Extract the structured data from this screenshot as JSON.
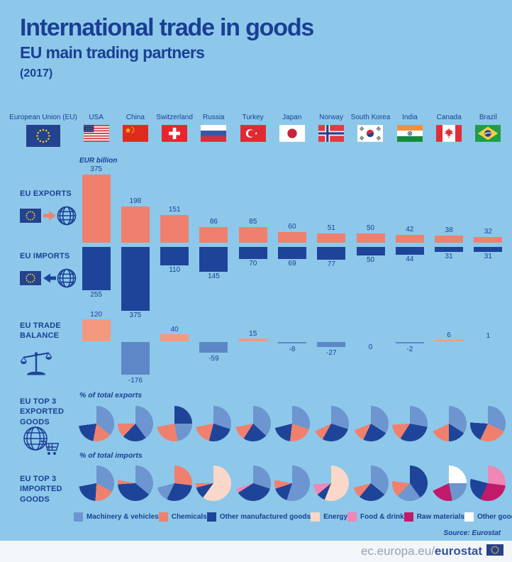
{
  "title": "International trade in goods",
  "subtitle": "EU main trading partners",
  "year": "(2017)",
  "unit_label": "EUR billion",
  "eu": {
    "label": "European Union (EU)"
  },
  "partners": [
    {
      "name": "USA",
      "flag": "usa"
    },
    {
      "name": "China",
      "flag": "china"
    },
    {
      "name": "Switzerland",
      "flag": "switzerland"
    },
    {
      "name": "Russia",
      "flag": "russia"
    },
    {
      "name": "Turkey",
      "flag": "turkey"
    },
    {
      "name": "Japan",
      "flag": "japan"
    },
    {
      "name": "Norway",
      "flag": "norway"
    },
    {
      "name": "South Korea",
      "flag": "south_korea"
    },
    {
      "name": "India",
      "flag": "india"
    },
    {
      "name": "Canada",
      "flag": "canada"
    },
    {
      "name": "Brazil",
      "flag": "brazil"
    }
  ],
  "row_labels": {
    "exports": "EU EXPORTS",
    "imports": "EU IMPORTS",
    "balance": "EU TRADE BALANCE",
    "top_exports": "EU TOP 3 EXPORTED GOODS",
    "top_imports": "EU TOP 3 IMPORTED GOODS"
  },
  "captions": {
    "exports_pies": "% of total exports",
    "imports_pies": "% of total imports"
  },
  "legend": [
    {
      "label": "Machinery & vehicles",
      "key": "machinery"
    },
    {
      "label": "Chemicals",
      "key": "chemicals"
    },
    {
      "label": "Other manufactured goods",
      "key": "other_manufactured"
    },
    {
      "label": "Energy",
      "key": "energy"
    },
    {
      "label": "Food & drink",
      "key": "food_drink"
    },
    {
      "label": "Raw materials",
      "key": "raw_materials"
    },
    {
      "label": "Other goods",
      "key": "other_goods"
    }
  ],
  "source": "Source: Eurostat",
  "footer": {
    "url_prefix": "ec.europa.eu/",
    "url_bold": "eurostat"
  },
  "colors": {
    "background": "#8dc8ea",
    "title_blue": "#1a3f94",
    "export_bar": "#f0806e",
    "import_bar": "#1e4499",
    "balance_positive": "#f4997f",
    "balance_negative": "#5d87c7",
    "machinery": "#6d95cf",
    "chemicals": "#f0806e",
    "other_manufactured": "#1e4499",
    "energy": "#f9d7c9",
    "food_drink": "#ef87b7",
    "raw_materials": "#c11a6a",
    "other_goods": "#ffffff"
  },
  "chart_data": [
    {
      "type": "bar",
      "title": "EU exports",
      "ylabel": "EUR billion",
      "categories": [
        "USA",
        "China",
        "Switzerland",
        "Russia",
        "Turkey",
        "Japan",
        "Norway",
        "South Korea",
        "India",
        "Canada",
        "Brazil"
      ],
      "values": [
        375,
        198,
        151,
        86,
        85,
        60,
        51,
        50,
        42,
        38,
        32
      ],
      "bar_color_key": "export_bar",
      "direction": "up"
    },
    {
      "type": "bar",
      "title": "EU imports",
      "ylabel": "EUR billion",
      "categories": [
        "USA",
        "China",
        "Switzerland",
        "Russia",
        "Turkey",
        "Japan",
        "Norway",
        "South Korea",
        "India",
        "Canada",
        "Brazil"
      ],
      "values": [
        255,
        375,
        110,
        145,
        70,
        69,
        77,
        50,
        44,
        31,
        31
      ],
      "bar_color_key": "import_bar",
      "direction": "down"
    },
    {
      "type": "bar",
      "title": "EU trade balance",
      "ylabel": "EUR billion",
      "categories": [
        "USA",
        "China",
        "Switzerland",
        "Russia",
        "Turkey",
        "Japan",
        "Norway",
        "South Korea",
        "India",
        "Canada",
        "Brazil"
      ],
      "values": [
        120,
        -176,
        40,
        -59,
        15,
        -8,
        -27,
        0,
        -2,
        6,
        1
      ],
      "pos_color_key": "balance_positive",
      "neg_color_key": "balance_negative"
    },
    {
      "type": "pie",
      "title": "EU top 3 exported goods",
      "unit": "% of total exports",
      "note": "slices are estimated shares read from the figure; remainder of each circle is blank",
      "pies": [
        {
          "country": "USA",
          "slices": [
            [
              "machinery",
              36
            ],
            [
              "chemicals",
              17
            ],
            [
              "other_manufactured",
              20
            ]
          ]
        },
        {
          "country": "China",
          "slices": [
            [
              "machinery",
              40
            ],
            [
              "other_manufactured",
              22
            ],
            [
              "chemicals",
              13
            ]
          ]
        },
        {
          "country": "Switzerland",
          "slices": [
            [
              "other_manufactured",
              25
            ],
            [
              "machinery",
              22
            ],
            [
              "chemicals",
              25
            ]
          ]
        },
        {
          "country": "Russia",
          "slices": [
            [
              "machinery",
              30
            ],
            [
              "other_manufactured",
              24
            ],
            [
              "chemicals",
              18
            ]
          ]
        },
        {
          "country": "Turkey",
          "slices": [
            [
              "machinery",
              37
            ],
            [
              "other_manufactured",
              22
            ],
            [
              "chemicals",
              13
            ]
          ]
        },
        {
          "country": "Japan",
          "slices": [
            [
              "machinery",
              30
            ],
            [
              "chemicals",
              22
            ],
            [
              "other_manufactured",
              19
            ]
          ]
        },
        {
          "country": "Norway",
          "slices": [
            [
              "machinery",
              30
            ],
            [
              "other_manufactured",
              28
            ],
            [
              "chemicals",
              10
            ]
          ]
        },
        {
          "country": "South Korea",
          "slices": [
            [
              "machinery",
              34
            ],
            [
              "other_manufactured",
              23
            ],
            [
              "chemicals",
              12
            ]
          ]
        },
        {
          "country": "India",
          "slices": [
            [
              "machinery",
              28
            ],
            [
              "other_manufactured",
              31
            ],
            [
              "chemicals",
              15
            ]
          ]
        },
        {
          "country": "Canada",
          "slices": [
            [
              "machinery",
              34
            ],
            [
              "other_manufactured",
              16
            ],
            [
              "chemicals",
              18
            ]
          ]
        },
        {
          "country": "Brazil",
          "slices": [
            [
              "machinery",
              32
            ],
            [
              "chemicals",
              25
            ],
            [
              "other_manufactured",
              19
            ]
          ]
        }
      ]
    },
    {
      "type": "pie",
      "title": "EU top 3 imported goods",
      "unit": "% of total imports",
      "note": "slices are estimated shares read from the figure; remainder of each circle is blank",
      "pies": [
        {
          "country": "USA",
          "slices": [
            [
              "machinery",
              33
            ],
            [
              "chemicals",
              18
            ],
            [
              "other_manufactured",
              21
            ]
          ]
        },
        {
          "country": "China",
          "slices": [
            [
              "machinery",
              36
            ],
            [
              "other_manufactured",
              38
            ],
            [
              "chemicals",
              4
            ]
          ]
        },
        {
          "country": "Switzerland",
          "slices": [
            [
              "chemicals",
              27
            ],
            [
              "other_manufactured",
              30
            ],
            [
              "machinery",
              14
            ]
          ]
        },
        {
          "country": "Russia",
          "slices": [
            [
              "energy",
              60
            ],
            [
              "other_manufactured",
              11
            ],
            [
              "chemicals",
              4
            ]
          ]
        },
        {
          "country": "Turkey",
          "slices": [
            [
              "machinery",
              30
            ],
            [
              "other_manufactured",
              36
            ],
            [
              "food_drink",
              4
            ]
          ]
        },
        {
          "country": "Japan",
          "slices": [
            [
              "machinery",
              55
            ],
            [
              "other_manufactured",
              15
            ],
            [
              "chemicals",
              8
            ]
          ]
        },
        {
          "country": "Norway",
          "slices": [
            [
              "energy",
              56
            ],
            [
              "other_manufactured",
              8
            ],
            [
              "food_drink",
              10
            ]
          ]
        },
        {
          "country": "South Korea",
          "slices": [
            [
              "machinery",
              36
            ],
            [
              "other_manufactured",
              25
            ],
            [
              "chemicals",
              10
            ]
          ]
        },
        {
          "country": "India",
          "slices": [
            [
              "other_manufactured",
              40
            ],
            [
              "machinery",
              22
            ],
            [
              "chemicals",
              15
            ]
          ]
        },
        {
          "country": "Canada",
          "slices": [
            [
              "other_goods",
              25
            ],
            [
              "machinery",
              22
            ],
            [
              "raw_materials",
              21
            ]
          ]
        },
        {
          "country": "Brazil",
          "slices": [
            [
              "food_drink",
              27
            ],
            [
              "raw_materials",
              30
            ],
            [
              "other_manufactured",
              22
            ]
          ]
        }
      ]
    }
  ]
}
